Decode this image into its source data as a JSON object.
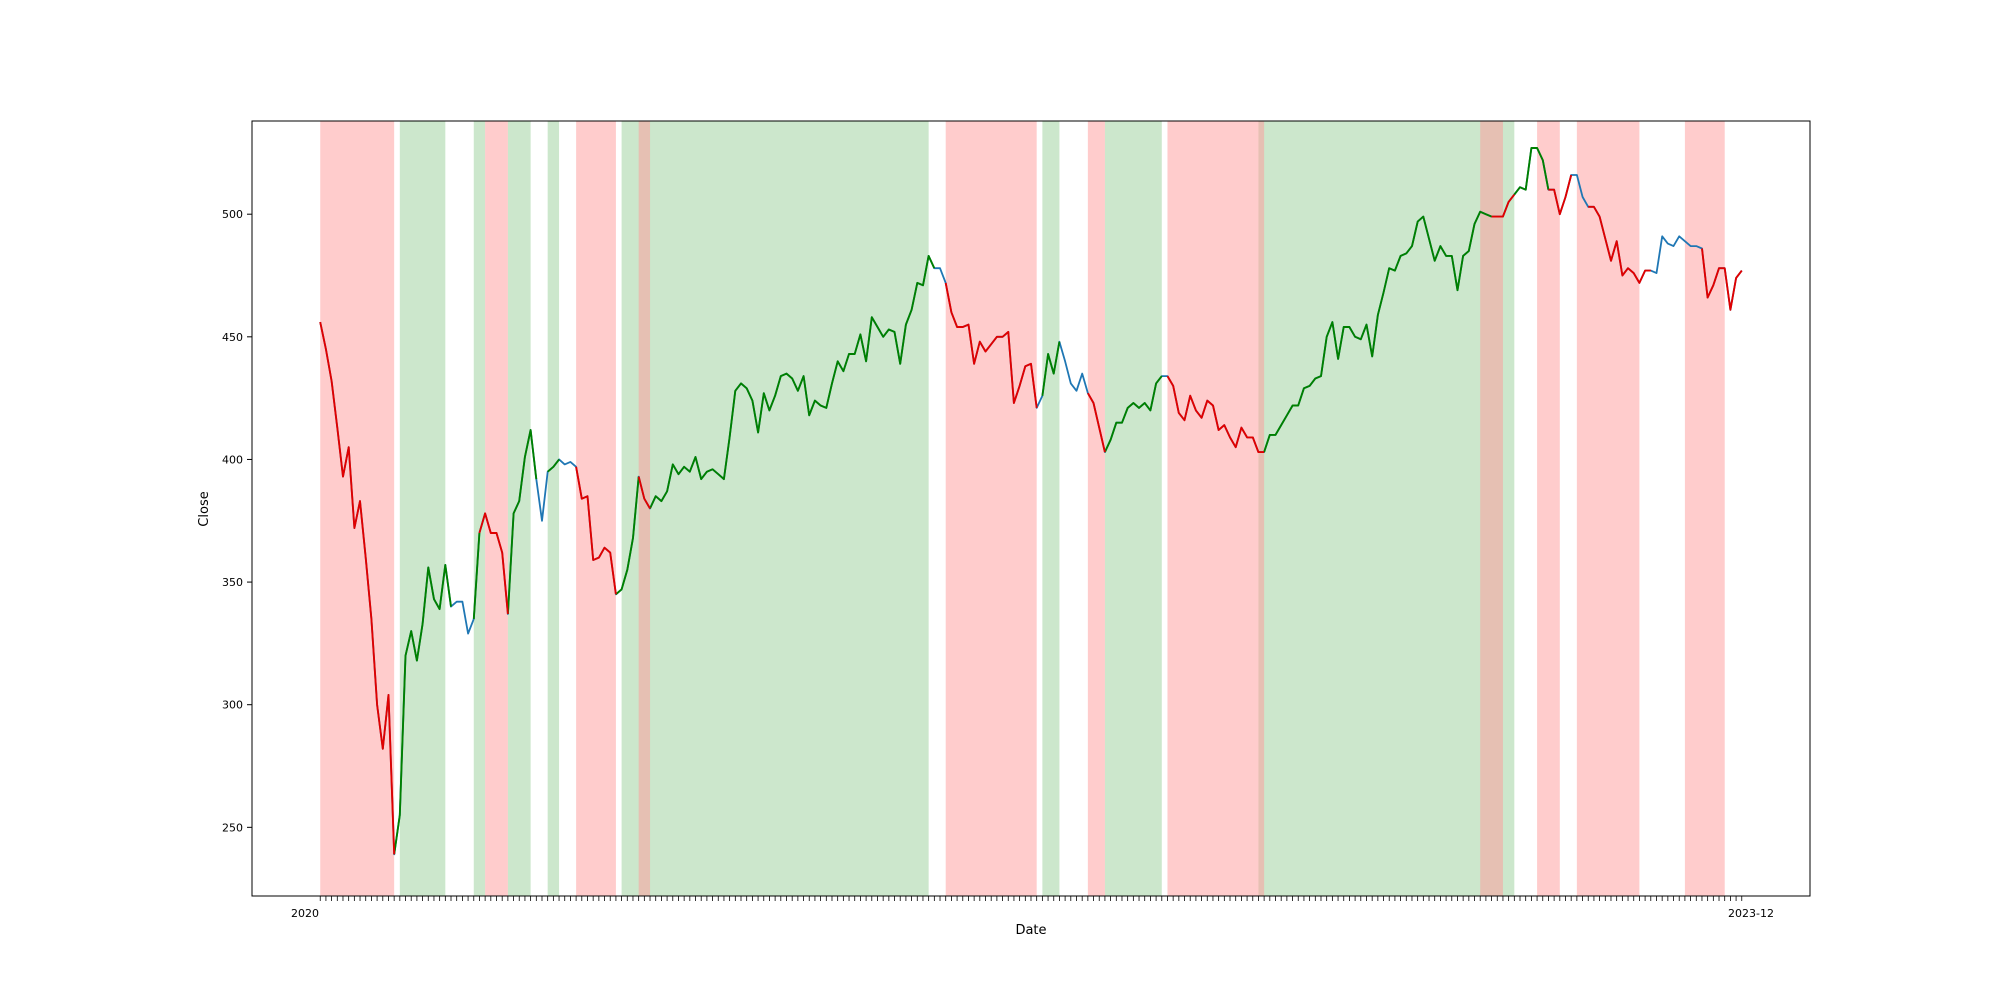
{
  "chart_data": {
    "type": "line",
    "title": "",
    "xlabel": "Date",
    "ylabel": "Close",
    "ylim": [
      222,
      538
    ],
    "yticks": [
      250,
      300,
      350,
      400,
      450,
      500
    ],
    "xlim": [
      -12,
      262
    ],
    "x_tick_labels": {
      "first": "2020",
      "last": "2023-12"
    },
    "grid": false,
    "colors": {
      "neutral_line": "#1f77b4",
      "up_line": "#008000",
      "down_line": "#e00000",
      "up_region": "#8fc98f",
      "down_region": "#ff9999",
      "overlap_region": "#c8a088"
    },
    "close": [
      456,
      445,
      432,
      413,
      393,
      405,
      372,
      383,
      360,
      335,
      300,
      282,
      304,
      239,
      255,
      320,
      330,
      318,
      333,
      356,
      343,
      339,
      357,
      340,
      342,
      342,
      329,
      335,
      370,
      378,
      370,
      370,
      362,
      337,
      378,
      383,
      401,
      412,
      392,
      375,
      395,
      397,
      400,
      398,
      399,
      397,
      384,
      385,
      359,
      360,
      364,
      362,
      345,
      347,
      355,
      368,
      393,
      384,
      380,
      385,
      383,
      387,
      398,
      394,
      397,
      395,
      401,
      392,
      395,
      396,
      394,
      392,
      409,
      428,
      431,
      429,
      424,
      411,
      427,
      420,
      426,
      434,
      435,
      433,
      428,
      434,
      418,
      424,
      422,
      421,
      431,
      440,
      436,
      443,
      443,
      451,
      440,
      458,
      454,
      450,
      453,
      452,
      439,
      455,
      461,
      472,
      471,
      483,
      478,
      478,
      472,
      460,
      454,
      454,
      455,
      439,
      448,
      444,
      447,
      450,
      450,
      452,
      423,
      430,
      438,
      439,
      421,
      426,
      443,
      435,
      448,
      440,
      431,
      428,
      435,
      427,
      423,
      413,
      403,
      408,
      415,
      415,
      421,
      423,
      421,
      423,
      420,
      431,
      434,
      434,
      430,
      419,
      416,
      426,
      420,
      417,
      424,
      422,
      412,
      414,
      409,
      405,
      413,
      409,
      409,
      403,
      403,
      410,
      410,
      414,
      418,
      422,
      422,
      429,
      430,
      433,
      434,
      450,
      456,
      441,
      454,
      454,
      450,
      449,
      455,
      442,
      459,
      468,
      478,
      477,
      483,
      484,
      487,
      497,
      499,
      490,
      481,
      487,
      483,
      483,
      469,
      483,
      485,
      496,
      501,
      500,
      499,
      499,
      499,
      505,
      508,
      511,
      510,
      527,
      527,
      522,
      510,
      510,
      500,
      507,
      516,
      516,
      507,
      503,
      503,
      499,
      490,
      481,
      489,
      475,
      478,
      476,
      472,
      477,
      477,
      476,
      491,
      488,
      487,
      491,
      489,
      487,
      487,
      486,
      466,
      471,
      478,
      478,
      461,
      474,
      477
    ],
    "down_segments": [
      [
        0,
        13
      ],
      [
        28,
        33
      ],
      [
        45,
        52
      ],
      [
        56,
        58
      ],
      [
        110,
        126
      ],
      [
        135,
        138
      ],
      [
        149,
        166
      ],
      [
        206,
        210
      ],
      [
        216,
        220
      ],
      [
        223,
        234
      ],
      [
        243,
        250
      ]
    ],
    "up_segments": [
      [
        13,
        23
      ],
      [
        27,
        28
      ],
      [
        33,
        38
      ],
      [
        40,
        42
      ],
      [
        52,
        56
      ],
      [
        58,
        108
      ],
      [
        127,
        130
      ],
      [
        138,
        148
      ],
      [
        166,
        206
      ],
      [
        210,
        216
      ]
    ],
    "down_regions": [
      [
        0,
        13
      ],
      [
        29,
        33
      ],
      [
        45,
        52
      ],
      [
        56,
        58
      ],
      [
        110,
        126
      ],
      [
        135,
        138
      ],
      [
        149,
        166
      ],
      [
        204,
        208
      ],
      [
        214,
        218
      ],
      [
        221,
        232
      ],
      [
        240,
        247
      ]
    ],
    "up_regions": [
      [
        14,
        22
      ],
      [
        27,
        29
      ],
      [
        33,
        37
      ],
      [
        40,
        42
      ],
      [
        53,
        107
      ],
      [
        127,
        130
      ],
      [
        138,
        148
      ],
      [
        165,
        210
      ]
    ]
  }
}
